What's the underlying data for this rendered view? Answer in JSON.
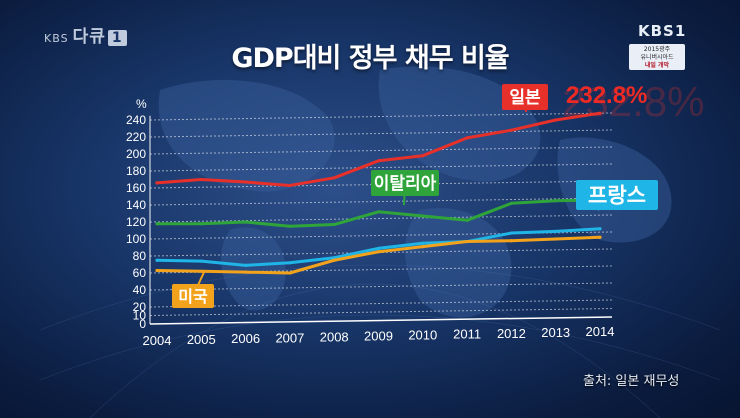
{
  "header": {
    "title": "GDP대비 정부 채무 비율",
    "channel_left_small": "KBS",
    "channel_left_brand": "다큐",
    "channel_left_num": "1",
    "channel_right": "KBS1",
    "promo_line1": "2015광주",
    "promo_line2": "유니버시아드",
    "promo_line3": "내일 개막"
  },
  "source": "출처: 일본 재무성",
  "colors": {
    "japan": "#e8302a",
    "italy": "#2fa43a",
    "france": "#1fb5e6",
    "usa": "#f2a31b"
  },
  "chart_data": {
    "type": "line",
    "title": "GDP대비 정부 채무 비율",
    "ylabel": "%",
    "xlabel": "",
    "ylim": [
      0,
      240
    ],
    "y_ticks": [
      0,
      10,
      20,
      40,
      60,
      80,
      100,
      120,
      140,
      160,
      180,
      200,
      220,
      240
    ],
    "grid": true,
    "x": [
      "2004",
      "2005",
      "2006",
      "2007",
      "2008",
      "2009",
      "2010",
      "2011",
      "2012",
      "2013",
      "2014"
    ],
    "series": [
      {
        "name": "일본",
        "color": "#e8302a",
        "values": [
          166,
          170,
          167,
          163,
          172,
          192,
          198,
          219,
          228,
          240,
          248
        ]
      },
      {
        "name": "이탈리아",
        "color": "#2fa43a",
        "values": [
          118,
          118,
          120,
          115,
          117,
          132,
          127,
          122,
          142,
          145,
          146
        ]
      },
      {
        "name": "프랑스",
        "color": "#1fb5e6",
        "values": [
          75,
          74,
          69,
          72,
          78,
          89,
          95,
          97,
          107,
          109,
          112
        ]
      },
      {
        "name": "미국",
        "color": "#f2a31b",
        "values": [
          63,
          62,
          61,
          60,
          75,
          85,
          91,
          97,
          98,
          100,
          102
        ]
      }
    ],
    "annotations": [
      {
        "series": "일본",
        "text": "232.8%"
      }
    ]
  }
}
